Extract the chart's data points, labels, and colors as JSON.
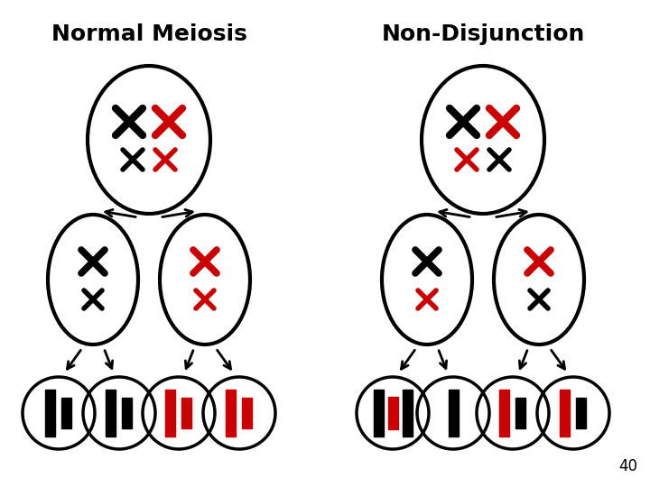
{
  "title_left": "Normal Meiosis",
  "title_right": "Non-Disjunction",
  "page_number": "40",
  "bg_color": "#ffffff",
  "black": "#000000",
  "red": "#cc0000",
  "title_fontsize": 18,
  "page_fontsize": 12
}
